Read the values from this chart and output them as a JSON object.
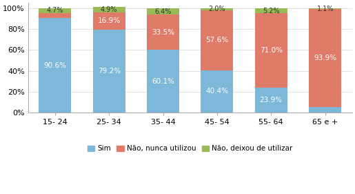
{
  "categories": [
    "15- 24",
    "25- 34",
    "35- 44",
    "45- 54",
    "55- 64",
    "65 e +"
  ],
  "sim": [
    90.6,
    79.2,
    60.1,
    40.4,
    23.9,
    5.0
  ],
  "nao_nunca": [
    4.7,
    16.9,
    33.5,
    57.6,
    71.0,
    93.9
  ],
  "nao_deixou": [
    4.7,
    4.9,
    6.4,
    2.0,
    5.2,
    1.1
  ],
  "color_sim": "#7db8d8",
  "color_nao_nunca": "#e07b6a",
  "color_nao_deixou": "#99bb55",
  "legend_sim": "Sim",
  "legend_nao_nunca": "Não, nunca utilizou",
  "legend_nao_deixou": "Não, deixou de utilizar",
  "ylim": [
    0,
    105
  ],
  "yticks": [
    0,
    20,
    40,
    60,
    80,
    100
  ],
  "yticklabels": [
    "0%",
    "20%",
    "40%",
    "60%",
    "80%",
    "100%"
  ],
  "bar_width": 0.6,
  "label_fontsize": 7.5,
  "tick_fontsize": 8,
  "legend_fontsize": 7.5
}
